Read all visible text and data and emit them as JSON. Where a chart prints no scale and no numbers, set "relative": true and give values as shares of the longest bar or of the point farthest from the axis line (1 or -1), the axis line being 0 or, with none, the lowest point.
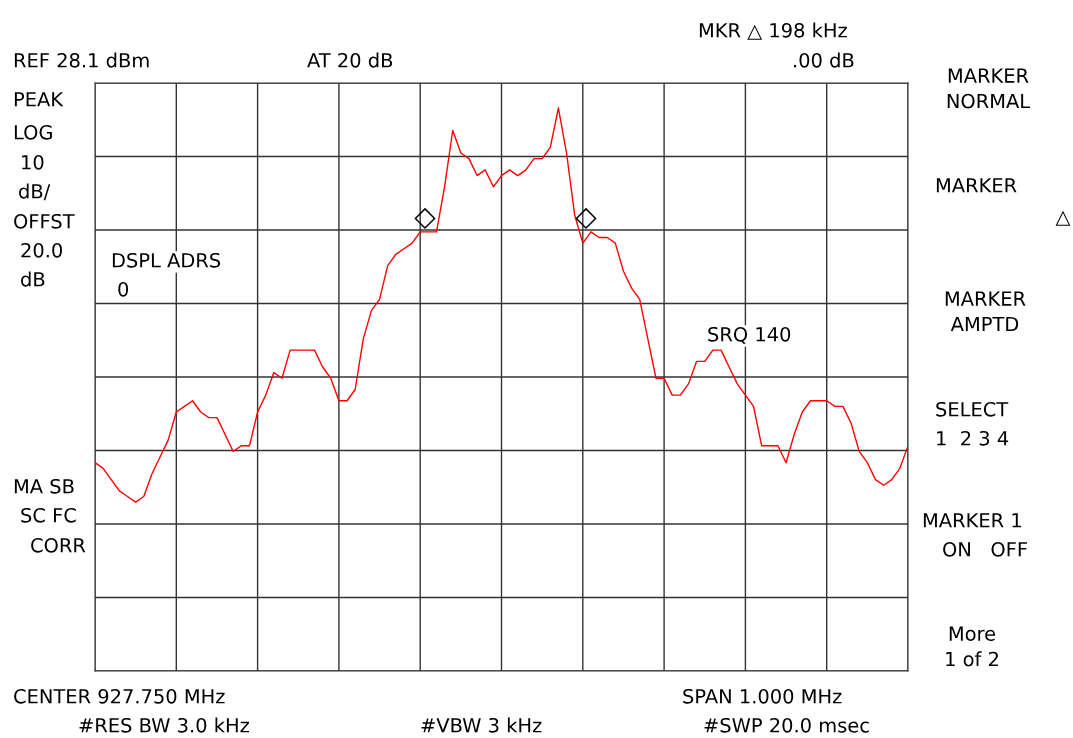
{
  "chart_data": {
    "type": "line",
    "relative": true,
    "grid": true,
    "tick_labels": false,
    "categories": [
      null,
      null,
      null,
      null,
      null,
      null,
      null,
      null,
      null,
      null,
      null,
      null,
      null,
      null,
      null,
      null,
      null,
      null,
      null,
      null,
      null,
      null,
      null,
      null,
      null,
      null,
      null,
      null,
      null,
      null,
      null,
      null,
      null,
      null,
      null,
      null,
      null,
      null,
      null,
      null,
      null,
      null,
      null,
      null,
      null,
      null,
      null,
      null,
      null,
      null,
      null,
      null,
      null,
      null,
      null,
      null,
      null,
      null,
      null,
      null,
      null,
      null,
      null,
      null,
      null,
      null,
      null,
      null,
      null,
      null,
      null,
      null,
      null,
      null,
      null,
      null,
      null,
      null,
      null,
      null,
      null,
      null,
      null,
      null,
      null,
      null,
      null,
      null,
      null,
      null,
      null,
      null,
      null,
      null,
      null,
      null,
      null,
      null,
      null,
      null,
      null
    ],
    "series": [
      {
        "color": "#ff0000",
        "marker": "none",
        "values": [
          0.37,
          0.36,
          0.34,
          0.32,
          0.31,
          0.3,
          0.31,
          0.35,
          0.38,
          0.41,
          0.46,
          0.47,
          0.48,
          0.46,
          0.45,
          0.45,
          0.42,
          0.39,
          0.4,
          0.4,
          0.46,
          0.49,
          0.53,
          0.52,
          0.57,
          0.57,
          0.57,
          0.57,
          0.54,
          0.52,
          0.48,
          0.48,
          0.5,
          0.59,
          0.64,
          0.66,
          0.72,
          0.74,
          0.75,
          0.76,
          0.78,
          0.78,
          0.78,
          0.86,
          0.96,
          0.92,
          0.91,
          0.88,
          0.89,
          0.86,
          0.88,
          0.89,
          0.88,
          0.89,
          0.91,
          0.91,
          0.93,
          1.0,
          0.92,
          0.81,
          0.76,
          0.78,
          0.77,
          0.77,
          0.76,
          0.71,
          0.68,
          0.66,
          0.59,
          0.52,
          0.52,
          0.49,
          0.49,
          0.51,
          0.55,
          0.55,
          0.57,
          0.57,
          0.54,
          0.51,
          0.49,
          0.47,
          0.4,
          0.4,
          0.4,
          0.37,
          0.42,
          0.46,
          0.48,
          0.48,
          0.48,
          0.47,
          0.47,
          0.44,
          0.39,
          0.37,
          0.34,
          0.33,
          0.34,
          0.36,
          0.4
        ]
      }
    ],
    "annotations": [
      "REF 28.1 dBm",
      "AT 20 dB",
      "MKR △ 198 kHz",
      ".00 dB",
      "PEAK",
      "LOG",
      "10",
      "dB/",
      "OFFST",
      "20.0",
      "dB",
      "DSPL ADRS",
      "0",
      "SRQ 140",
      "MA SB",
      "SC FC",
      "CORR",
      "CENTER 927.750 MHz",
      "SPAN 1.000 MHz",
      "#RES BW 3.0 kHz",
      "#VBW 3 kHz",
      "#SWP 20.0 msec",
      "MARKER\nNORMAL",
      "MARKER",
      "△",
      "MARKER\nAMPTD",
      "SELECT",
      "1  2 3 4",
      "MARKER 1",
      "ON   OFF",
      "More\n1 of 2",
      "◇",
      "◇"
    ]
  }
}
